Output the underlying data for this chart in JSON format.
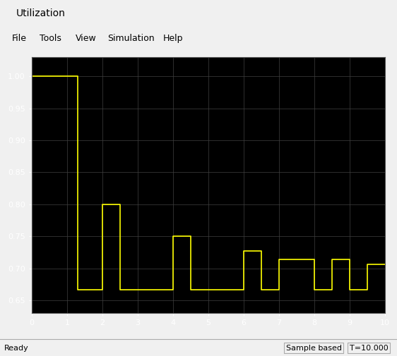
{
  "title": "Utilization",
  "bg_color": "#000000",
  "line_color": "#ffff00",
  "fig_bg_color": "#f0f0f0",
  "xlim": [
    0,
    10
  ],
  "ylim": [
    0.63,
    1.03
  ],
  "yticks": [
    0.65,
    0.7,
    0.75,
    0.8,
    0.85,
    0.9,
    0.95,
    1.0
  ],
  "xticks": [
    0,
    1,
    2,
    3,
    4,
    5,
    6,
    7,
    8,
    9,
    10
  ],
  "step_x": [
    0,
    1.3,
    1.3,
    2.0,
    2.0,
    2.5,
    2.5,
    4.0,
    4.0,
    4.5,
    4.5,
    6.0,
    6.0,
    6.5,
    6.5,
    7.0,
    7.0,
    8.0,
    8.0,
    8.5,
    8.5,
    9.0,
    9.0,
    9.5,
    9.5,
    10.0
  ],
  "step_y": [
    1.0,
    1.0,
    0.667,
    0.667,
    0.8,
    0.8,
    0.667,
    0.667,
    0.75,
    0.75,
    0.667,
    0.667,
    0.727,
    0.727,
    0.667,
    0.667,
    0.714,
    0.714,
    0.667,
    0.667,
    0.714,
    0.714,
    0.667,
    0.667,
    0.706,
    0.706
  ],
  "grid_color": "#404040",
  "status_text": "Ready",
  "time_text": "T=10.000",
  "mode_text": "Sample based"
}
